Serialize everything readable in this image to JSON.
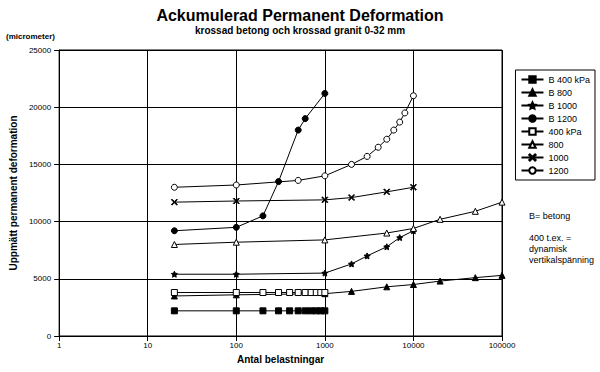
{
  "chart_data": {
    "type": "line",
    "title": "Ackumulerad Permanent Deformation",
    "subtitle": "krossad betong och krossad granit 0-32 mm",
    "xlabel": "Antal belastningar",
    "ylabel": "Uppmätt permanent deformation",
    "y_unit_label": "(micrometer)",
    "annotations": [
      "B= betong",
      "400 t.ex. =\ndynamisk\nvertikalspänning"
    ],
    "log": "x",
    "grid": true,
    "legend": "right",
    "xlim": [
      1,
      100000
    ],
    "xticks": [
      1,
      10,
      100,
      1000,
      10000,
      100000
    ],
    "ylim": [
      0,
      25000
    ],
    "yticks": [
      0,
      5000,
      10000,
      15000,
      20000,
      25000
    ],
    "series": [
      {
        "name": "B 400 kPa",
        "color": "#000000",
        "marker": "square",
        "line_style": "solid",
        "x": [
          20,
          100,
          200,
          300,
          400,
          500,
          600,
          700,
          800,
          900,
          1000
        ],
        "values": [
          2200,
          2200,
          2200,
          2200,
          2200,
          2200,
          2200,
          2200,
          2200,
          2200,
          2200
        ]
      },
      {
        "name": "B 800",
        "color": "#000000",
        "marker": "triangle",
        "line_style": "solid",
        "x": [
          20,
          100,
          1000,
          2000,
          5000,
          10000,
          20000,
          50000,
          100000
        ],
        "values": [
          3500,
          3600,
          3700,
          3900,
          4300,
          4500,
          4800,
          5100,
          5300
        ]
      },
      {
        "name": "B 1000",
        "color": "#000000",
        "marker": "star",
        "line_style": "solid",
        "x": [
          20,
          100,
          1000,
          2000,
          3000,
          5000,
          7000,
          10000
        ],
        "values": [
          5400,
          5400,
          5500,
          6300,
          7000,
          7800,
          8600,
          9200
        ]
      },
      {
        "name": "B 1200",
        "color": "#000000",
        "marker": "circle",
        "line_style": "solid",
        "x": [
          20,
          100,
          200,
          300,
          500,
          600,
          1000
        ],
        "values": [
          9200,
          9500,
          10500,
          13500,
          18000,
          19000,
          21200
        ]
      },
      {
        "name": "400 kPa",
        "color": "#000000",
        "marker": "square-open",
        "line_style": "solid",
        "x": [
          20,
          100,
          200,
          300,
          400,
          500,
          600,
          700,
          800,
          900,
          1000
        ],
        "values": [
          3800,
          3800,
          3800,
          3800,
          3800,
          3800,
          3800,
          3800,
          3800,
          3800,
          3800
        ]
      },
      {
        "name": "800",
        "color": "#000000",
        "marker": "triangle-open",
        "line_style": "solid",
        "x": [
          20,
          100,
          1000,
          5000,
          10000,
          20000,
          50000,
          100000
        ],
        "values": [
          8000,
          8200,
          8400,
          9000,
          9400,
          10200,
          10900,
          11700
        ]
      },
      {
        "name": "1000",
        "color": "#000000",
        "marker": "x",
        "line_style": "solid",
        "x": [
          20,
          100,
          1000,
          2000,
          5000,
          10000
        ],
        "values": [
          11700,
          11800,
          11900,
          12100,
          12600,
          13000
        ]
      },
      {
        "name": "1200",
        "color": "#000000",
        "marker": "circle-open",
        "line_style": "solid",
        "x": [
          20,
          100,
          500,
          1000,
          2000,
          3000,
          4000,
          5000,
          6000,
          7000,
          8000,
          10000
        ],
        "values": [
          13000,
          13200,
          13600,
          14000,
          15000,
          15700,
          16500,
          17200,
          18000,
          18700,
          19500,
          21000
        ]
      }
    ]
  }
}
